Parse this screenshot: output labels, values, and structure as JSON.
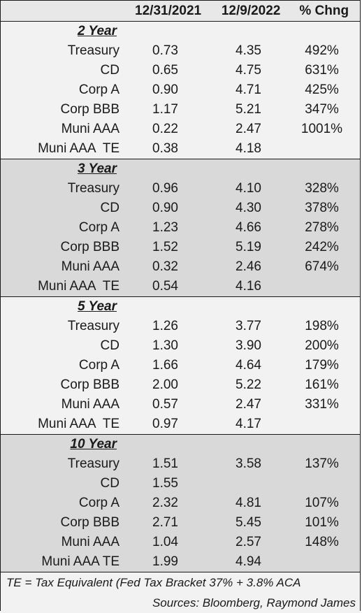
{
  "header": {
    "label": "",
    "col1": "12/31/2021",
    "col2": "12/9/2022",
    "col3": "% Chng"
  },
  "groups": [
    {
      "title": "2 Year",
      "rows": [
        {
          "name": "Treasury",
          "v1": "0.73",
          "v2": "4.35",
          "v3": "492%"
        },
        {
          "name": "CD",
          "v1": "0.65",
          "v2": "4.75",
          "v3": "631%"
        },
        {
          "name": "Corp A",
          "v1": "0.90",
          "v2": "4.71",
          "v3": "425%"
        },
        {
          "name": "Corp BBB",
          "v1": "1.17",
          "v2": "5.21",
          "v3": "347%"
        },
        {
          "name": "Muni AAA",
          "v1": "0.22",
          "v2": "2.47",
          "v3": "1001%"
        },
        {
          "name": "Muni AAA  TE",
          "v1": "0.38",
          "v2": "4.18",
          "v3": ""
        }
      ]
    },
    {
      "title": "3 Year",
      "rows": [
        {
          "name": "Treasury",
          "v1": "0.96",
          "v2": "4.10",
          "v3": "328%"
        },
        {
          "name": "CD",
          "v1": "0.90",
          "v2": "4.30",
          "v3": "378%"
        },
        {
          "name": "Corp A",
          "v1": "1.23",
          "v2": "4.66",
          "v3": "278%"
        },
        {
          "name": "Corp BBB",
          "v1": "1.52",
          "v2": "5.19",
          "v3": "242%"
        },
        {
          "name": "Muni AAA",
          "v1": "0.32",
          "v2": "2.46",
          "v3": "674%"
        },
        {
          "name": "Muni AAA  TE",
          "v1": "0.54",
          "v2": "4.16",
          "v3": ""
        }
      ]
    },
    {
      "title": "5 Year",
      "rows": [
        {
          "name": "Treasury",
          "v1": "1.26",
          "v2": "3.77",
          "v3": "198%"
        },
        {
          "name": "CD",
          "v1": "1.30",
          "v2": "3.90",
          "v3": "200%"
        },
        {
          "name": "Corp A",
          "v1": "1.66",
          "v2": "4.64",
          "v3": "179%"
        },
        {
          "name": "Corp BBB",
          "v1": "2.00",
          "v2": "5.22",
          "v3": "161%"
        },
        {
          "name": "Muni AAA",
          "v1": "0.57",
          "v2": "2.47",
          "v3": "331%"
        },
        {
          "name": "Muni AAA  TE",
          "v1": "0.97",
          "v2": "4.17",
          "v3": ""
        }
      ]
    },
    {
      "title": "10 Year",
      "rows": [
        {
          "name": "Treasury",
          "v1": "1.51",
          "v2": "3.58",
          "v3": "137%"
        },
        {
          "name": "CD",
          "v1": "1.55",
          "v2": "",
          "v3": ""
        },
        {
          "name": "Corp A",
          "v1": "2.32",
          "v2": "4.81",
          "v3": "107%"
        },
        {
          "name": "Corp BBB",
          "v1": "2.71",
          "v2": "5.45",
          "v3": "101%"
        },
        {
          "name": "Muni AAA",
          "v1": "1.04",
          "v2": "2.57",
          "v3": "148%"
        },
        {
          "name": "Muni AAA TE",
          "v1": "1.99",
          "v2": "4.94",
          "v3": ""
        }
      ]
    }
  ],
  "footer": {
    "note": "TE = Tax Equivalent (Fed Tax Bracket 37% + 3.8% ACA",
    "sources": "Sources: Bloomberg, Raymond James"
  },
  "colors": {
    "header_bg": "#e8e8e8",
    "light_bg": "#f2f2f2",
    "dark_bg": "#d9d9d9",
    "border": "#1a1a1a"
  }
}
